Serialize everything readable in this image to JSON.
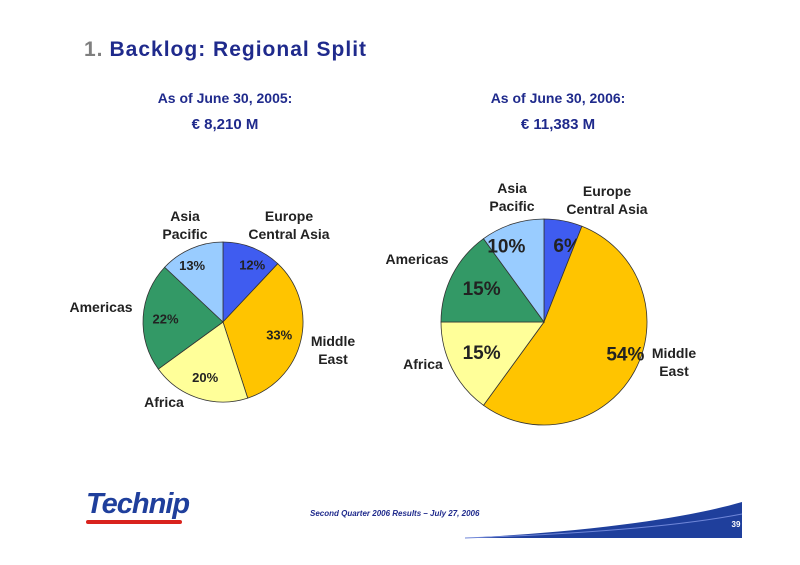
{
  "slide": {
    "number": "1.",
    "title": "Backlog: Regional Split",
    "footer": "Second Quarter 2006 Results – July 27, 2006",
    "page": "39",
    "logo": "Technip"
  },
  "chart_data": [
    {
      "type": "pie",
      "title": "As of June 30, 2005:",
      "subtitle": "€ 8,210 M",
      "slices": [
        {
          "label": "Europe Central Asia",
          "value": 12,
          "display": "12%",
          "color": "#3f5cf0"
        },
        {
          "label": "Middle East",
          "value": 33,
          "display": "33%",
          "color": "#ffc400"
        },
        {
          "label": "Africa",
          "value": 20,
          "display": "20%",
          "color": "#ffff99"
        },
        {
          "label": "Americas",
          "value": 22,
          "display": "22%",
          "color": "#339966"
        },
        {
          "label": "Asia Pacific",
          "value": 13,
          "display": "13%",
          "color": "#99ccff"
        }
      ]
    },
    {
      "type": "pie",
      "title": "As of June 30, 2006:",
      "subtitle": "€ 11,383 M",
      "slices": [
        {
          "label": "Europe Central Asia",
          "value": 6,
          "display": "6%",
          "color": "#3f5cf0"
        },
        {
          "label": "Middle East",
          "value": 54,
          "display": "54%",
          "color": "#ffc400"
        },
        {
          "label": "Africa",
          "value": 15,
          "display": "15%",
          "color": "#ffff99"
        },
        {
          "label": "Americas",
          "value": 15,
          "display": "15%",
          "color": "#339966"
        },
        {
          "label": "Asia Pacific",
          "value": 10,
          "display": "10%",
          "color": "#99ccff"
        }
      ]
    }
  ]
}
